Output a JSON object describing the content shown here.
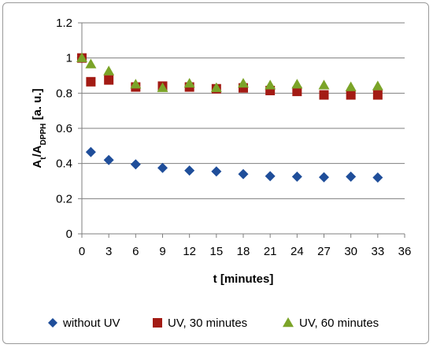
{
  "chart_data": {
    "type": "scatter",
    "xlabel": "t [minutes]",
    "ylabel": {
      "a": "A",
      "a_sub": "t",
      "slash": "/A",
      "b_sub": "DPPH",
      "units": " [a. u.]"
    },
    "xlim": [
      0,
      36
    ],
    "ylim": [
      0,
      1.2
    ],
    "x_ticks": [
      "0",
      "3",
      "6",
      "9",
      "12",
      "15",
      "18",
      "21",
      "24",
      "27",
      "30",
      "33",
      "36"
    ],
    "y_ticks": [
      "0",
      "0.2",
      "0.4",
      "0.6",
      "0.8",
      "1",
      "1.2"
    ],
    "grid": "horizontal",
    "legend_position": "bottom",
    "series": [
      {
        "name": "without UV",
        "marker": "diamond",
        "color": "#1f4e9a",
        "points": [
          [
            0,
            1.0
          ],
          [
            1,
            0.465
          ],
          [
            3,
            0.42
          ],
          [
            6,
            0.395
          ],
          [
            9,
            0.375
          ],
          [
            12,
            0.36
          ],
          [
            15,
            0.355
          ],
          [
            18,
            0.34
          ],
          [
            21,
            0.328
          ],
          [
            24,
            0.325
          ],
          [
            27,
            0.322
          ],
          [
            30,
            0.325
          ],
          [
            33,
            0.32
          ]
        ]
      },
      {
        "name": "UV, 30 minutes",
        "marker": "square",
        "color": "#a31b14",
        "points": [
          [
            0,
            1.0
          ],
          [
            1,
            0.865
          ],
          [
            3,
            0.875
          ],
          [
            6,
            0.835
          ],
          [
            9,
            0.84
          ],
          [
            12,
            0.835
          ],
          [
            15,
            0.825
          ],
          [
            18,
            0.83
          ],
          [
            21,
            0.815
          ],
          [
            24,
            0.81
          ],
          [
            27,
            0.79
          ],
          [
            30,
            0.79
          ],
          [
            33,
            0.79
          ]
        ]
      },
      {
        "name": "UV, 60 minutes",
        "marker": "triangle",
        "color": "#7ba428",
        "points": [
          [
            0,
            1.0
          ],
          [
            1,
            0.965
          ],
          [
            3,
            0.925
          ],
          [
            6,
            0.85
          ],
          [
            9,
            0.83
          ],
          [
            12,
            0.855
          ],
          [
            15,
            0.83
          ],
          [
            18,
            0.855
          ],
          [
            21,
            0.845
          ],
          [
            24,
            0.85
          ],
          [
            27,
            0.845
          ],
          [
            30,
            0.835
          ],
          [
            33,
            0.84
          ]
        ]
      }
    ]
  }
}
